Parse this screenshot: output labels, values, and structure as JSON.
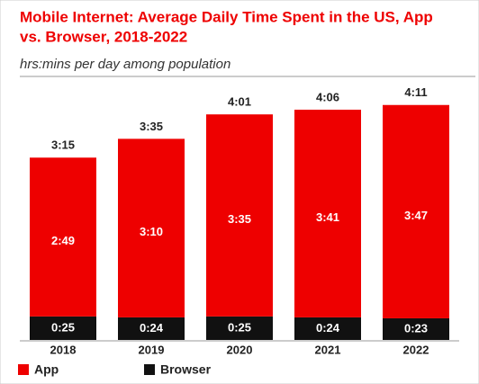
{
  "chart_data": {
    "type": "stacked-bar",
    "title": [
      "Mobile Internet: Average Daily Time Spent in the US, App",
      "vs. Browser, 2018-2022"
    ],
    "subtitle": "hrs:mins per day among population",
    "categories": [
      "2018",
      "2019",
      "2020",
      "2021",
      "2022"
    ],
    "series": [
      {
        "name": "App",
        "color": "#ee0000",
        "values": [
          169,
          190,
          215,
          221,
          227
        ],
        "value_labels": [
          "2:49",
          "3:10",
          "3:35",
          "3:41",
          "3:47"
        ]
      },
      {
        "name": "Browser",
        "color": "#111111",
        "values": [
          25,
          24,
          25,
          24,
          23
        ],
        "value_labels": [
          "0:25",
          "0:24",
          "0:25",
          "0:24",
          "0:23"
        ]
      }
    ],
    "totals": [
      195,
      215,
      241,
      246,
      251
    ],
    "total_labels": [
      "3:15",
      "3:35",
      "4:01",
      "4:06",
      "4:11"
    ]
  }
}
